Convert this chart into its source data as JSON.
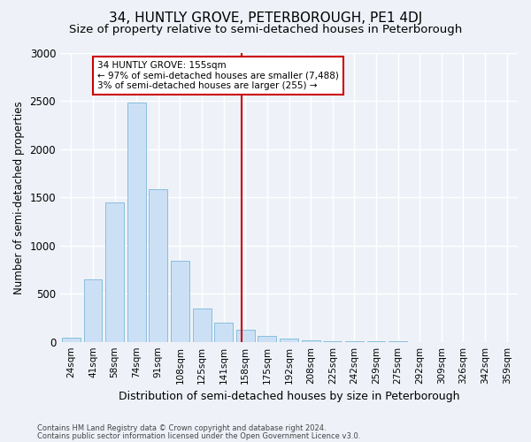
{
  "title": "34, HUNTLY GROVE, PETERBOROUGH, PE1 4DJ",
  "subtitle": "Size of property relative to semi-detached houses in Peterborough",
  "xlabel": "Distribution of semi-detached houses by size in Peterborough",
  "ylabel": "Number of semi-detached properties",
  "categories": [
    "24sqm",
    "41sqm",
    "58sqm",
    "74sqm",
    "91sqm",
    "108sqm",
    "125sqm",
    "141sqm",
    "158sqm",
    "175sqm",
    "192sqm",
    "208sqm",
    "225sqm",
    "242sqm",
    "259sqm",
    "275sqm",
    "292sqm",
    "309sqm",
    "326sqm",
    "342sqm",
    "359sqm"
  ],
  "values": [
    45,
    650,
    1450,
    2490,
    1590,
    840,
    350,
    200,
    130,
    65,
    30,
    18,
    10,
    5,
    3,
    2,
    1,
    0,
    0,
    0,
    0
  ],
  "bar_color": "#cce0f5",
  "bar_edge_color": "#7bb8d8",
  "ref_line_color": "#cc0000",
  "annotation_line1": "34 HUNTLY GROVE: 155sqm",
  "annotation_line2": "← 97% of semi-detached houses are smaller (7,488)",
  "annotation_line3": "3% of semi-detached houses are larger (255) →",
  "annotation_box_color": "#cc0000",
  "ylim": [
    0,
    3000
  ],
  "yticks": [
    0,
    500,
    1000,
    1500,
    2000,
    2500,
    3000
  ],
  "footnote1": "Contains HM Land Registry data © Crown copyright and database right 2024.",
  "footnote2": "Contains public sector information licensed under the Open Government Licence v3.0.",
  "bg_color": "#eef2f8",
  "grid_color": "#ffffff",
  "title_fontsize": 11,
  "subtitle_fontsize": 9.5,
  "tick_fontsize": 7.5,
  "ylabel_fontsize": 8.5,
  "xlabel_fontsize": 9
}
